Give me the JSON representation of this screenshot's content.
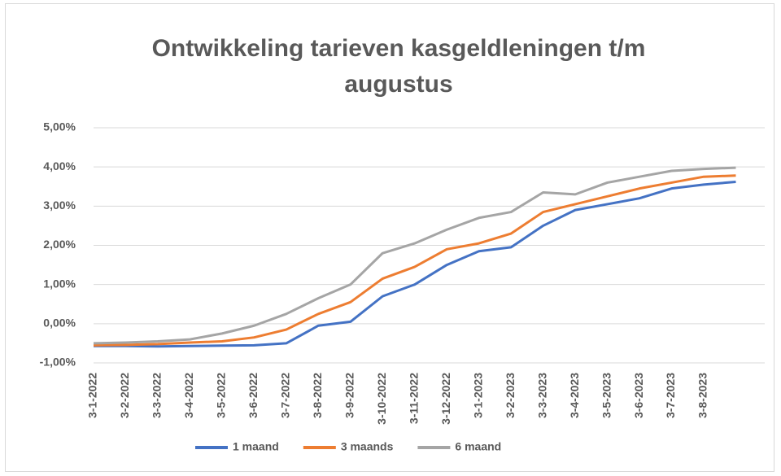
{
  "chart_data": {
    "type": "line",
    "title": "Ontwikkeling tarieven kasgeldleningen t/m augustus",
    "categories": [
      "3-1-2022",
      "3-2-2022",
      "3-3-2022",
      "3-4-2022",
      "3-5-2022",
      "3-6-2022",
      "3-7-2022",
      "3-8-2022",
      "3-9-2022",
      "3-10-2022",
      "3-11-2022",
      "3-12-2022",
      "3-1-2023",
      "3-2-2023",
      "3-3-2023",
      "3-4-2023",
      "3-5-2023",
      "3-6-2023",
      "3-7-2023",
      "3-8-2023",
      null
    ],
    "series": [
      {
        "name": "1 maand",
        "color": "#4472c4",
        "values": [
          -0.57,
          -0.57,
          -0.58,
          -0.57,
          -0.56,
          -0.55,
          -0.5,
          -0.05,
          0.05,
          0.7,
          1.0,
          1.5,
          1.85,
          1.95,
          2.5,
          2.9,
          3.05,
          3.2,
          3.45,
          3.55,
          3.62
        ]
      },
      {
        "name": "3 maands",
        "color": "#ed7d31",
        "values": [
          -0.55,
          -0.54,
          -0.52,
          -0.48,
          -0.45,
          -0.35,
          -0.15,
          0.25,
          0.55,
          1.15,
          1.45,
          1.9,
          2.05,
          2.3,
          2.85,
          3.05,
          3.25,
          3.45,
          3.6,
          3.75,
          3.78
        ]
      },
      {
        "name": "6 maand",
        "color": "#a5a5a5",
        "values": [
          -0.5,
          -0.48,
          -0.45,
          -0.4,
          -0.25,
          -0.05,
          0.25,
          0.65,
          1.0,
          1.8,
          2.05,
          2.4,
          2.7,
          2.85,
          3.35,
          3.3,
          3.6,
          3.75,
          3.9,
          3.95,
          3.98
        ]
      }
    ],
    "ylim": [
      -1,
      5
    ],
    "yticks": [
      {
        "value": -1,
        "label": "-1,00%"
      },
      {
        "value": 0,
        "label": "0,00%"
      },
      {
        "value": 1,
        "label": "1,00%"
      },
      {
        "value": 2,
        "label": "2,00%"
      },
      {
        "value": 3,
        "label": "3,00%"
      },
      {
        "value": 4,
        "label": "4,00%"
      },
      {
        "value": 5,
        "label": "5,00%"
      }
    ],
    "grid": true,
    "legend": "bottom"
  }
}
